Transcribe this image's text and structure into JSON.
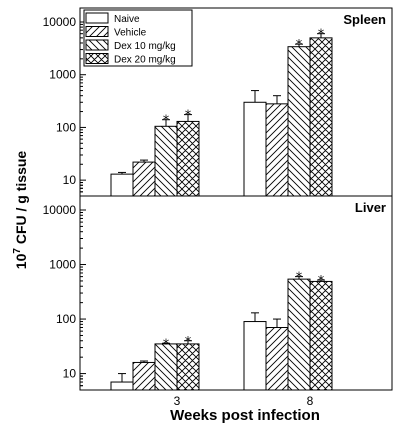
{
  "chart_data": {
    "type": "bar",
    "y_scale": "log",
    "ylim": [
      5,
      10000
    ],
    "y_ticks": [
      10,
      100,
      1000,
      10000
    ],
    "y_tick_labels": [
      "10",
      "100",
      "1000",
      "10000"
    ],
    "categories": [
      "3",
      "8"
    ],
    "xlabel": "Weeks  post  infection",
    "ylabel_base": "10",
    "ylabel_exp": "7",
    "ylabel_rest": " CFU / g tissue",
    "legend_position": "top-left",
    "series": [
      {
        "name": "Naive",
        "pattern": "none"
      },
      {
        "name": "Vehicle",
        "pattern": "diag-right"
      },
      {
        "name": "Dex 10 mg/kg",
        "pattern": "diag-left"
      },
      {
        "name": "Dex 20 mg/kg",
        "pattern": "cross"
      }
    ],
    "panels": [
      {
        "title": "Spleen",
        "values": [
          [
            13,
            22,
            105,
            130
          ],
          [
            300,
            280,
            3400,
            5000
          ]
        ],
        "errors": [
          [
            14,
            24,
            140,
            175
          ],
          [
            500,
            400,
            3800,
            6000
          ]
        ],
        "significant": [
          [
            false,
            false,
            true,
            true
          ],
          [
            false,
            false,
            true,
            true
          ]
        ]
      },
      {
        "title": "Liver",
        "values": [
          [
            7,
            16,
            35,
            35
          ],
          [
            90,
            70,
            540,
            490
          ]
        ],
        "errors": [
          [
            10,
            17,
            36,
            40
          ],
          [
            130,
            100,
            600,
            520
          ]
        ],
        "significant": [
          [
            false,
            false,
            true,
            true
          ],
          [
            false,
            false,
            true,
            true
          ]
        ]
      }
    ],
    "significance_marker": "*"
  }
}
